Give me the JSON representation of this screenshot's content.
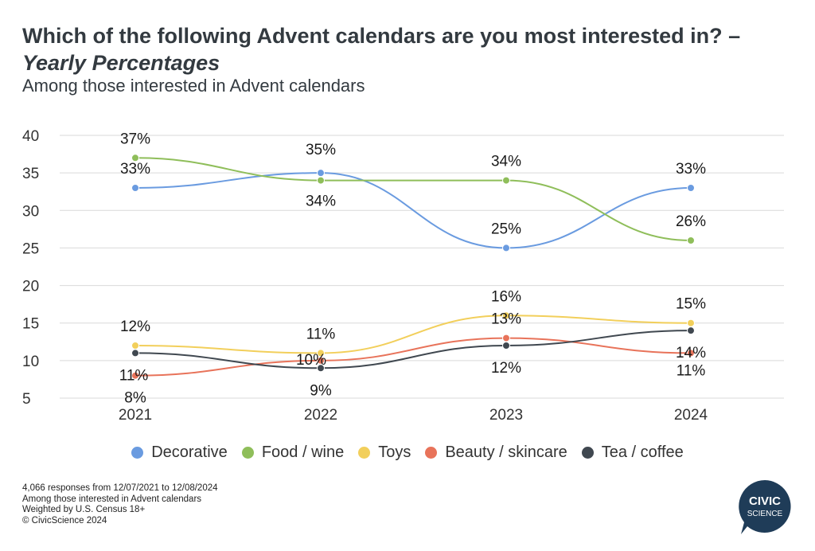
{
  "title": {
    "line1": "Which of the following Advent calendars are you most interested in? –",
    "line2": "Yearly Percentages"
  },
  "subtitle": "Among those interested in Advent calendars",
  "chart_data": {
    "type": "line",
    "x": [
      "2021",
      "2022",
      "2023",
      "2024"
    ],
    "ylim": [
      5,
      40
    ],
    "yticks": [
      5,
      10,
      15,
      20,
      25,
      30,
      35,
      40
    ],
    "grid": true,
    "legend_position": "bottom",
    "series": [
      {
        "name": "Decorative",
        "color": "#6a9be0",
        "values": [
          33,
          35,
          25,
          33
        ],
        "labels": [
          "33%",
          "35%",
          "25%",
          "33%"
        ]
      },
      {
        "name": "Food / wine",
        "color": "#8fbe5a",
        "values": [
          37,
          34,
          34,
          26
        ],
        "labels": [
          "37%",
          "34%",
          "34%",
          "26%"
        ]
      },
      {
        "name": "Toys",
        "color": "#f2cf5b",
        "values": [
          12,
          11,
          16,
          15
        ],
        "labels": [
          "12%",
          "11%",
          "16%",
          "15%"
        ]
      },
      {
        "name": "Beauty / skincare",
        "color": "#e8735a",
        "values": [
          8,
          10,
          13,
          11
        ],
        "labels": [
          "8%",
          "10%",
          "13%",
          "11%"
        ]
      },
      {
        "name": "Tea / coffee",
        "color": "#404850",
        "values": [
          11,
          9,
          12,
          14
        ],
        "labels": [
          "11%",
          "9%",
          "12%",
          "14%"
        ]
      }
    ]
  },
  "notes": [
    "4,066 responses from 12/07/2021 to 12/08/2024",
    "Among those interested in Advent calendars",
    "Weighted by U.S. Census 18+",
    "© CivicScience 2024"
  ],
  "logo": {
    "line1": "CIVIC",
    "line2": "SCIENCE",
    "color": "#1f3c58"
  }
}
